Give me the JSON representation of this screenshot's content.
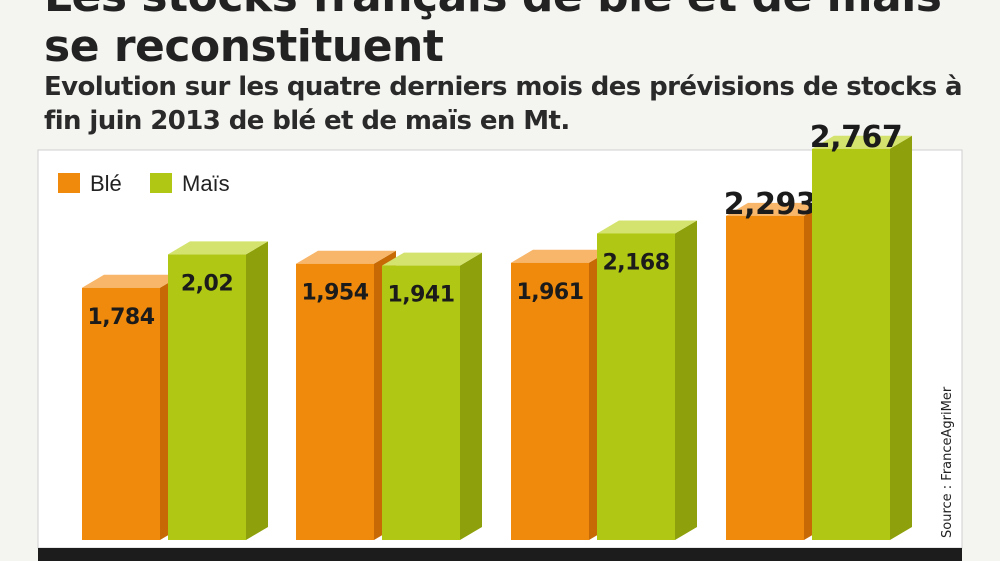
{
  "title": "Les stocks français de blé et de maïs se reconstituent",
  "subtitle": "Evolution sur les quatre derniers mois des prévisions de stocks à fin juin 2013 de blé et de maïs en Mt.",
  "source": "Source : FranceAgriMer",
  "colors": {
    "ble": "#f08a0c",
    "mais": "#b0c814",
    "panel": "#ffffff",
    "axis_band": "#1c1c1c"
  },
  "chart_data": {
    "type": "bar",
    "categories": [
      "",
      "",
      "",
      ""
    ],
    "series": [
      {
        "name": "Blé",
        "values": [
          1.784,
          1.954,
          1.961,
          2.293
        ],
        "labels": [
          "1,784",
          "1,954",
          "1,961",
          "2,293"
        ]
      },
      {
        "name": "Maïs",
        "values": [
          2.02,
          1.941,
          2.168,
          2.767
        ],
        "labels": [
          "2,02",
          "1,941",
          "2,168",
          "2,767"
        ]
      }
    ],
    "ylim": [
      0,
      2.9
    ],
    "legend": "top-left",
    "grid": false
  }
}
